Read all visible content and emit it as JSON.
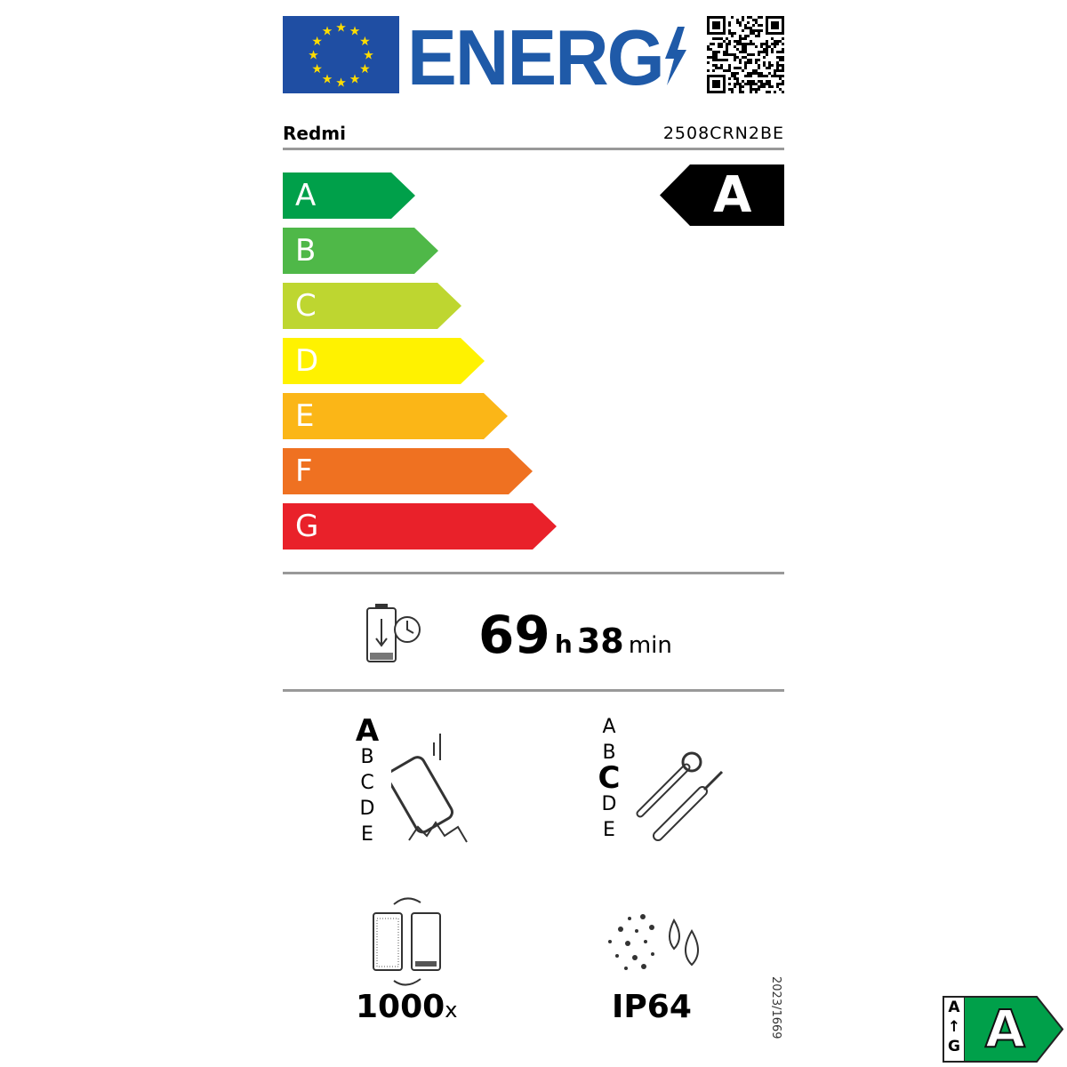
{
  "header": {
    "logo_text": "ENERG",
    "flag": "eu-flag",
    "qr": "qr-code"
  },
  "supplier": {
    "brand": "Redmi",
    "model": "2508CRN2BE"
  },
  "classes": [
    {
      "letter": "A",
      "color": "#00a04a"
    },
    {
      "letter": "B",
      "color": "#4fb848"
    },
    {
      "letter": "C",
      "color": "#bed630"
    },
    {
      "letter": "D",
      "color": "#fff200"
    },
    {
      "letter": "E",
      "color": "#fbb617"
    },
    {
      "letter": "F",
      "color": "#ef7121"
    },
    {
      "letter": "G",
      "color": "#e9212a"
    }
  ],
  "rating": {
    "class": "A"
  },
  "battery": {
    "hours": "69",
    "h_unit": "h",
    "minutes": "38",
    "min_unit": "min"
  },
  "drop": {
    "scale": [
      "A",
      "B",
      "C",
      "D",
      "E"
    ],
    "selected": "A"
  },
  "repair": {
    "scale": [
      "A",
      "B",
      "C",
      "D",
      "E"
    ],
    "selected": "C"
  },
  "cycles": {
    "value": "1000",
    "unit": "x"
  },
  "ip": {
    "value": "IP64"
  },
  "regulation": "2023/1669",
  "badge": {
    "top": "A",
    "bottom": "G",
    "class": "A",
    "color": "#00a04a"
  }
}
